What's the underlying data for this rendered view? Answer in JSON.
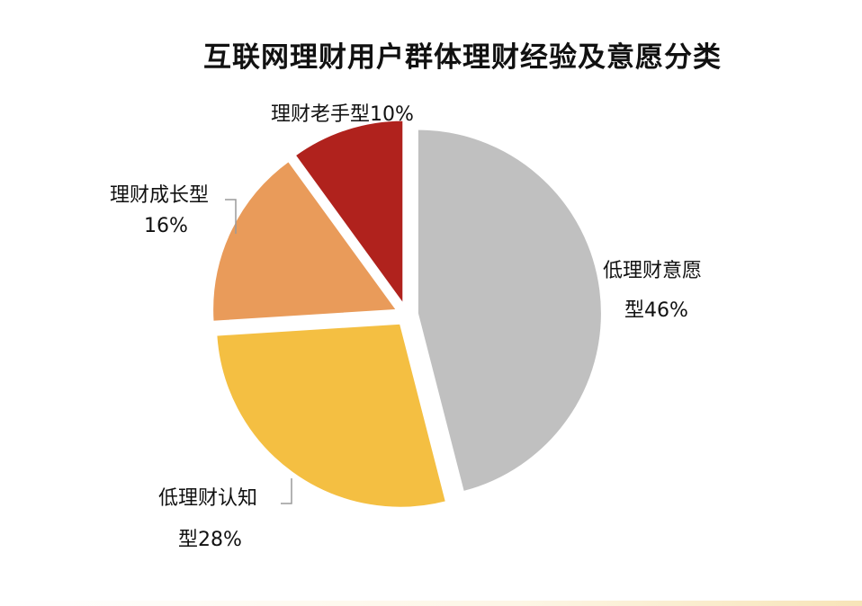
{
  "chart_data": {
    "type": "pie",
    "title": "互联网理财用户群体理财经验及意愿分类",
    "slices": [
      {
        "name": "低理财意愿型",
        "value": 46,
        "label_lines": [
          "低理财意愿",
          "型46%"
        ],
        "color": "#c0c0c0"
      },
      {
        "name": "低理财认知型",
        "value": 28,
        "label_lines": [
          "低理财认知",
          "型28%"
        ],
        "color": "#f4bf42"
      },
      {
        "name": "理财成长型",
        "value": 16,
        "label_lines": [
          "理财成长型",
          "16%"
        ],
        "color": "#e99b5a"
      },
      {
        "name": "理财老手型",
        "value": 10,
        "label_lines": [
          "理财老手型10%"
        ],
        "color": "#b0221d"
      }
    ],
    "start_angle_deg": 0,
    "direction": "clockwise",
    "exploded": true
  }
}
